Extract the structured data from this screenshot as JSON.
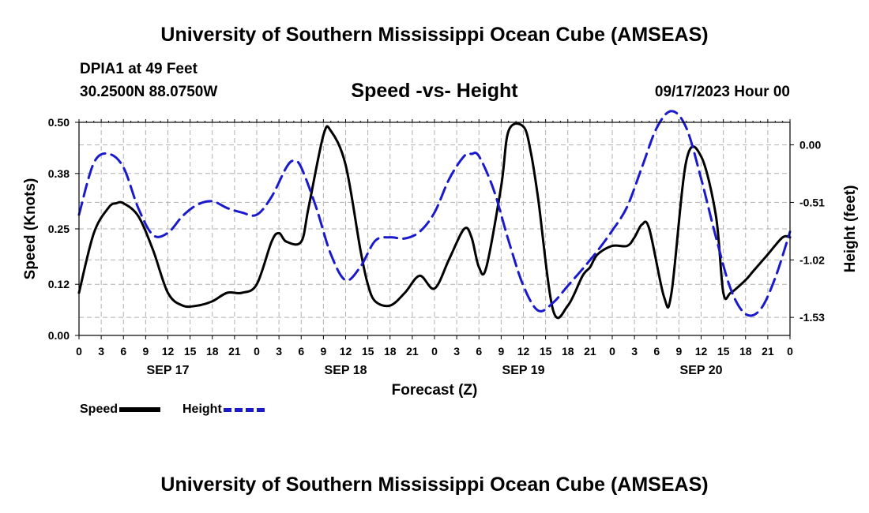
{
  "header": {
    "title": "University of Southern Mississippi Ocean Cube (AMSEAS)",
    "station": "DPIA1 at 49 Feet",
    "coords": "30.2500N  88.0750W",
    "subtitle": "Speed -vs- Height",
    "date": "09/17/2023 Hour 00"
  },
  "footer": {
    "title": "University of Southern Mississippi Ocean Cube (AMSEAS)"
  },
  "legend": {
    "speed": "Speed",
    "height": "Height"
  },
  "colors": {
    "speed": "#000000",
    "height": "#1a1acc",
    "grid": "#b0b0b0"
  },
  "chart_data": {
    "type": "line",
    "xlabel": "Forecast (Z)",
    "ylabel": "Speed (Knots)",
    "y2label": "Height (feet)",
    "xlim": [
      0,
      96
    ],
    "ylim": [
      0,
      0.5
    ],
    "y2lim": [
      -1.69,
      0.2
    ],
    "yticks": [
      "0.00",
      "0.12",
      "0.25",
      "0.38",
      "0.50"
    ],
    "y2ticks": [
      "0.00",
      "-0.51",
      "-1.02",
      "-1.53"
    ],
    "xtick_labels": [
      "0",
      "3",
      "6",
      "9",
      "12",
      "15",
      "18",
      "21",
      "0",
      "3",
      "6",
      "9",
      "12",
      "15",
      "18",
      "21",
      "0",
      "3",
      "6",
      "9",
      "12",
      "15",
      "18",
      "21",
      "0",
      "3",
      "6",
      "9",
      "12",
      "15",
      "18",
      "21",
      "0"
    ],
    "day_labels": [
      "SEP 17",
      "SEP 18",
      "SEP 19",
      "SEP 20"
    ],
    "series": [
      {
        "name": "Speed",
        "axis": "left",
        "x": [
          0,
          2,
          4,
          5,
          6,
          8,
          10,
          12,
          14,
          16,
          18,
          20,
          22,
          24,
          26,
          27,
          28,
          30,
          31,
          33,
          34,
          36,
          38,
          39,
          40,
          42,
          44,
          46,
          48,
          50,
          52,
          53,
          54,
          55,
          57,
          58,
          60,
          61,
          62,
          64,
          66,
          68,
          69,
          70,
          72,
          74,
          75,
          76,
          77,
          79,
          80,
          82,
          84,
          86,
          87,
          88,
          90,
          91,
          93,
          95,
          96
        ],
        "values": [
          0.1,
          0.24,
          0.3,
          0.31,
          0.31,
          0.28,
          0.2,
          0.1,
          0.07,
          0.07,
          0.08,
          0.1,
          0.1,
          0.12,
          0.22,
          0.24,
          0.22,
          0.22,
          0.3,
          0.47,
          0.48,
          0.4,
          0.2,
          0.12,
          0.08,
          0.07,
          0.1,
          0.14,
          0.11,
          0.18,
          0.25,
          0.23,
          0.16,
          0.16,
          0.35,
          0.48,
          0.49,
          0.43,
          0.32,
          0.06,
          0.07,
          0.14,
          0.16,
          0.19,
          0.21,
          0.21,
          0.23,
          0.26,
          0.25,
          0.09,
          0.1,
          0.41,
          0.42,
          0.28,
          0.1,
          0.1,
          0.13,
          0.15,
          0.19,
          0.23,
          0.23
        ]
      },
      {
        "name": "Height",
        "axis": "right",
        "x": [
          0,
          2,
          4,
          6,
          8,
          10,
          12,
          14,
          16,
          18,
          20,
          22,
          24,
          26,
          28,
          29,
          30,
          32,
          34,
          36,
          38,
          40,
          42,
          44,
          46,
          48,
          50,
          52,
          53,
          54,
          56,
          58,
          60,
          62,
          64,
          66,
          68,
          70,
          72,
          74,
          76,
          78,
          80,
          82,
          84,
          86,
          88,
          90,
          92,
          94,
          96
        ],
        "values": [
          -0.62,
          -0.16,
          -0.08,
          -0.2,
          -0.56,
          -0.8,
          -0.78,
          -0.63,
          -0.53,
          -0.5,
          -0.56,
          -0.6,
          -0.62,
          -0.46,
          -0.2,
          -0.14,
          -0.2,
          -0.55,
          -0.97,
          -1.2,
          -1.08,
          -0.85,
          -0.82,
          -0.83,
          -0.77,
          -0.6,
          -0.3,
          -0.1,
          -0.08,
          -0.1,
          -0.4,
          -0.85,
          -1.25,
          -1.47,
          -1.4,
          -1.25,
          -1.1,
          -0.94,
          -0.76,
          -0.55,
          -0.2,
          0.15,
          0.3,
          0.15,
          -0.3,
          -0.82,
          -1.28,
          -1.5,
          -1.46,
          -1.18,
          -0.77
        ]
      }
    ]
  }
}
